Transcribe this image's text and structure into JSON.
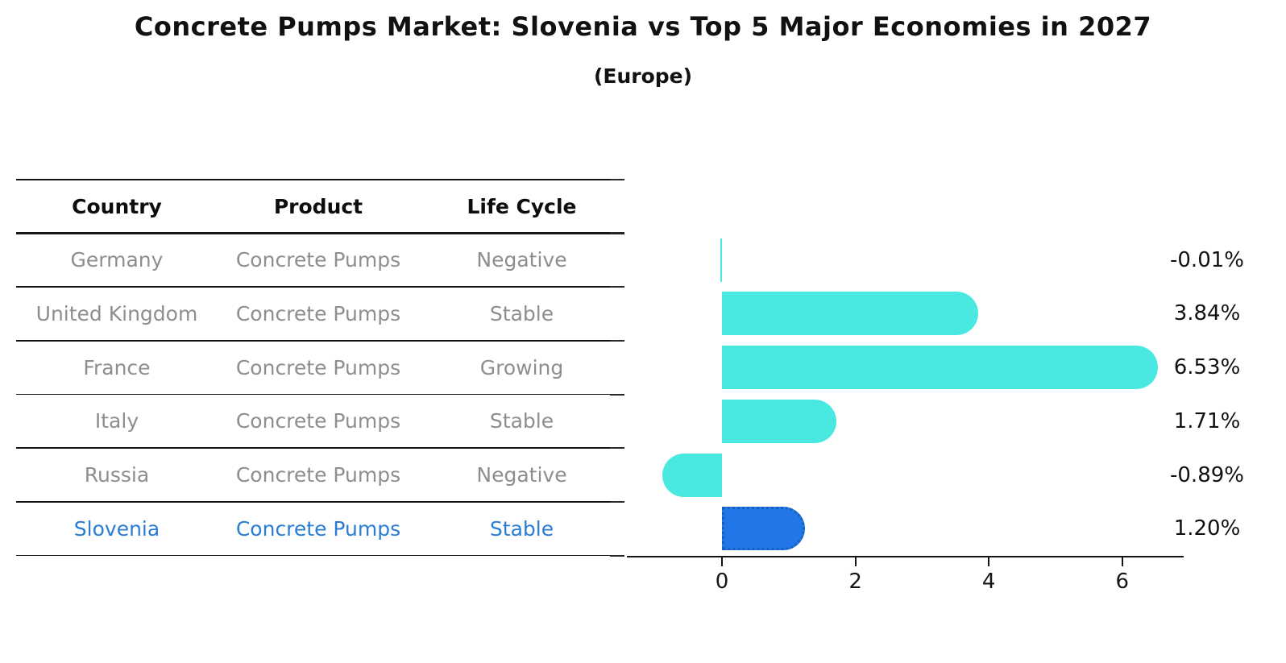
{
  "title": "Concrete Pumps Market: Slovenia vs Top 5 Major Economies in 2027",
  "subtitle": "(Europe)",
  "table": {
    "headers": [
      "Country",
      "Product",
      "Life Cycle"
    ],
    "rows": [
      {
        "country": "Germany",
        "product": "Concrete Pumps",
        "life_cycle": "Negative",
        "highlight": false
      },
      {
        "country": "United Kingdom",
        "product": "Concrete Pumps",
        "life_cycle": "Stable",
        "highlight": false
      },
      {
        "country": "France",
        "product": "Concrete Pumps",
        "life_cycle": "Growing",
        "highlight": false
      },
      {
        "country": "Italy",
        "product": "Concrete Pumps",
        "life_cycle": "Stable",
        "highlight": false
      },
      {
        "country": "Russia",
        "product": "Concrete Pumps",
        "life_cycle": "Negative",
        "highlight": false
      },
      {
        "country": "Slovenia",
        "product": "Concrete Pumps",
        "life_cycle": "Stable",
        "highlight": true
      }
    ]
  },
  "chart_data": {
    "type": "bar",
    "orientation": "horizontal",
    "title": "Concrete Pumps Market: Slovenia vs Top 5 Major Economies in 2027",
    "subtitle": "(Europe)",
    "categories": [
      "Germany",
      "United Kingdom",
      "France",
      "Italy",
      "Russia",
      "Slovenia"
    ],
    "values": [
      -0.01,
      3.84,
      6.53,
      1.71,
      -0.89,
      1.2
    ],
    "value_labels": [
      "-0.01%",
      "3.84%",
      "6.53%",
      "1.71%",
      "-0.89%",
      "1.20%"
    ],
    "xlabel": "",
    "ylabel": "",
    "xlim": [
      -1.43,
      6.92
    ],
    "xticks": [
      0,
      2,
      4,
      6
    ],
    "xtick_labels": [
      "0",
      "2",
      "4",
      "6"
    ],
    "grid": false,
    "legend": false,
    "highlight_category": "Slovenia",
    "units": "percent CAGR"
  },
  "colors": {
    "bar_default": "#49E8E1",
    "bar_highlight": "#2277E8",
    "bar_highlight_border": "#155FC0",
    "highlight_text": "#2B7CD3",
    "table_text": "#8e8e8e",
    "header_text": "#0d0d0d",
    "axis": "#161616",
    "background": "#ffffff"
  }
}
